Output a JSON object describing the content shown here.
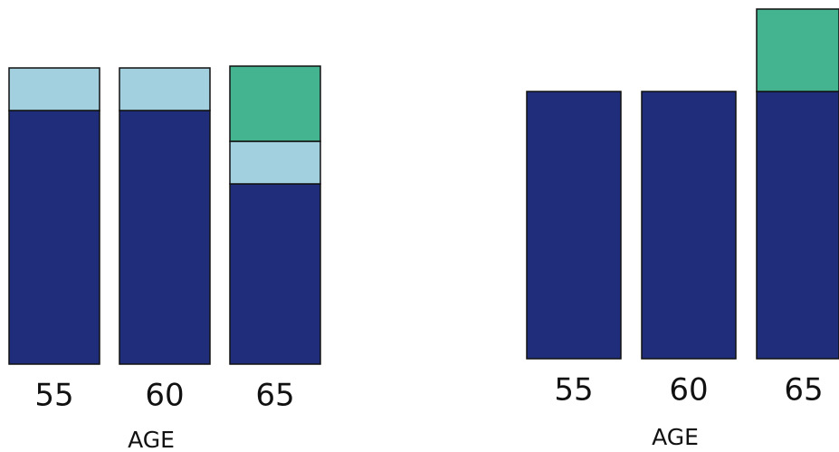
{
  "chart_data": [
    {
      "type": "bar",
      "stacked": true,
      "xlabel": "AGE",
      "categories": [
        "55",
        "60",
        "65"
      ],
      "series": [
        {
          "color": "#1f2d7b",
          "values": [
            280,
            280,
            199
          ]
        },
        {
          "color": "#a2d0df",
          "values": [
            47,
            47,
            47
          ]
        },
        {
          "color": "#44b38f",
          "values": [
            null,
            null,
            83
          ]
        }
      ]
    },
    {
      "type": "bar",
      "stacked": true,
      "xlabel": "AGE",
      "categories": [
        "55",
        "60",
        "65"
      ],
      "series": [
        {
          "color": "#1f2d7b",
          "values": [
            295,
            295,
            295
          ]
        },
        {
          "color": "#44b38f",
          "values": [
            null,
            null,
            91
          ]
        }
      ]
    }
  ]
}
